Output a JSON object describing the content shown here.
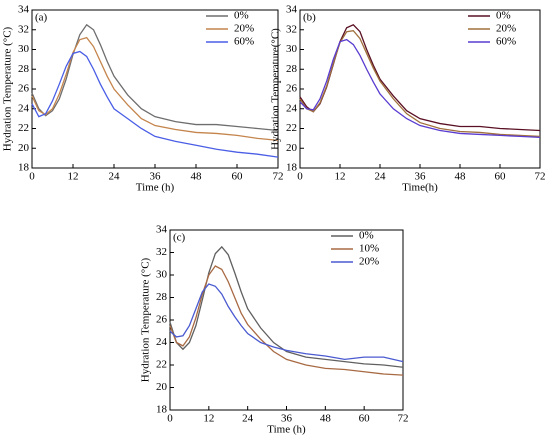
{
  "chart_data": [
    {
      "type": "line",
      "label": "(a)",
      "x_label": "Time (h)",
      "y_label": "Hydration Temperature (°C)",
      "x": [
        0,
        2,
        4,
        6,
        8,
        10,
        12,
        14,
        16,
        18,
        20,
        22,
        24,
        28,
        32,
        36,
        42,
        48,
        54,
        60,
        66,
        72
      ],
      "series": [
        {
          "name": "0%",
          "color": "#6e6e6e",
          "values": [
            25.6,
            24.0,
            23.3,
            23.8,
            25.0,
            27.0,
            29.5,
            31.5,
            32.5,
            32.0,
            30.5,
            28.8,
            27.3,
            25.4,
            24.0,
            23.2,
            22.7,
            22.4,
            22.4,
            22.2,
            22.0,
            21.8
          ]
        },
        {
          "name": "20%",
          "color": "#c4844c",
          "values": [
            25.3,
            23.8,
            23.4,
            24.0,
            25.5,
            27.5,
            29.7,
            31.0,
            31.2,
            30.3,
            28.8,
            27.3,
            26.0,
            24.4,
            23.0,
            22.3,
            21.9,
            21.6,
            21.5,
            21.3,
            21.0,
            20.8
          ]
        },
        {
          "name": "60%",
          "color": "#4a5ee6",
          "values": [
            24.5,
            23.2,
            23.5,
            24.8,
            26.5,
            28.3,
            29.6,
            29.8,
            29.3,
            28.0,
            26.5,
            25.2,
            24.0,
            23.0,
            22.0,
            21.2,
            20.7,
            20.3,
            19.9,
            19.6,
            19.4,
            19.1
          ]
        }
      ],
      "xlim": [
        0,
        72
      ],
      "xticks": [
        0,
        12,
        24,
        36,
        48,
        60,
        72
      ],
      "ylim": [
        18,
        34
      ],
      "yticks": [
        18,
        20,
        22,
        24,
        26,
        28,
        30,
        32,
        34
      ],
      "legend": "upper right"
    },
    {
      "type": "line",
      "label": "(b)",
      "x_label": "Time(h)",
      "y_label": "Hydration Temperature(°C)",
      "x": [
        0,
        2,
        4,
        6,
        8,
        10,
        12,
        14,
        16,
        18,
        20,
        22,
        24,
        28,
        32,
        36,
        42,
        48,
        54,
        60,
        66,
        72
      ],
      "series": [
        {
          "name": "0%",
          "color": "#5a1024",
          "values": [
            25.2,
            24.2,
            23.7,
            24.5,
            26.2,
            28.5,
            30.8,
            32.2,
            32.5,
            31.8,
            30.0,
            28.4,
            27.0,
            25.3,
            23.8,
            23.0,
            22.5,
            22.2,
            22.2,
            22.0,
            21.9,
            21.8
          ]
        },
        {
          "name": "20%",
          "color": "#a0703c",
          "values": [
            25.0,
            24.0,
            23.7,
            24.6,
            26.3,
            28.6,
            30.7,
            31.8,
            31.9,
            31.1,
            29.6,
            28.1,
            26.8,
            25.0,
            23.5,
            22.6,
            22.0,
            21.7,
            21.6,
            21.4,
            21.3,
            21.2
          ]
        },
        {
          "name": "60%",
          "color": "#5a3cd0",
          "values": [
            24.7,
            24.0,
            23.9,
            25.0,
            26.8,
            29.0,
            30.8,
            31.0,
            30.5,
            29.4,
            28.0,
            26.7,
            25.5,
            24.0,
            23.0,
            22.3,
            21.8,
            21.5,
            21.4,
            21.3,
            21.2,
            21.1
          ]
        }
      ],
      "xlim": [
        0,
        72
      ],
      "xticks": [
        0,
        12,
        24,
        36,
        48,
        60,
        72
      ],
      "ylim": [
        18,
        34
      ],
      "yticks": [
        18,
        20,
        22,
        24,
        26,
        28,
        30,
        32,
        34
      ],
      "legend": "upper right"
    },
    {
      "type": "line",
      "label": "(c)",
      "x_label": "Time (h)",
      "y_label": "Hydration Temperature (°C)",
      "x": [
        0,
        2,
        4,
        6,
        8,
        10,
        12,
        14,
        16,
        18,
        20,
        22,
        24,
        28,
        32,
        36,
        42,
        48,
        54,
        60,
        66,
        72
      ],
      "series": [
        {
          "name": "0%",
          "color": "#606060",
          "values": [
            25.8,
            24.0,
            23.4,
            24.0,
            25.5,
            27.8,
            30.2,
            31.9,
            32.5,
            31.8,
            30.2,
            28.5,
            27.0,
            25.3,
            24.0,
            23.2,
            22.7,
            22.5,
            22.3,
            22.1,
            22.0,
            21.8
          ]
        },
        {
          "name": "10%",
          "color": "#a86a44",
          "values": [
            25.5,
            24.0,
            23.7,
            24.5,
            26.2,
            28.3,
            30.0,
            30.8,
            30.5,
            29.4,
            28.0,
            26.6,
            25.6,
            24.3,
            23.2,
            22.5,
            22.0,
            21.7,
            21.6,
            21.4,
            21.2,
            21.1
          ]
        },
        {
          "name": "20%",
          "color": "#4a5ad0",
          "values": [
            25.0,
            24.5,
            24.6,
            25.5,
            27.0,
            28.5,
            29.2,
            29.0,
            28.3,
            27.2,
            26.3,
            25.5,
            24.8,
            24.0,
            23.6,
            23.3,
            23.0,
            22.8,
            22.5,
            22.7,
            22.7,
            22.3
          ]
        }
      ],
      "xlim": [
        0,
        72
      ],
      "xticks": [
        0,
        12,
        24,
        36,
        48,
        60,
        72
      ],
      "ylim": [
        18,
        34
      ],
      "yticks": [
        18,
        20,
        22,
        24,
        26,
        28,
        30,
        32,
        34
      ],
      "legend": "upper right"
    }
  ]
}
